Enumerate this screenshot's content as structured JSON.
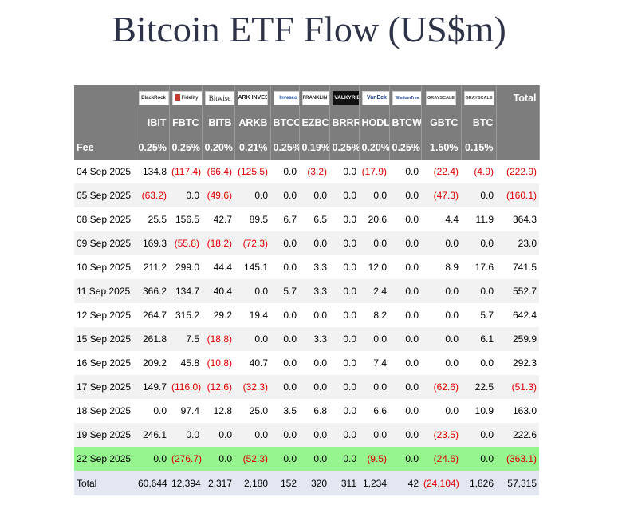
{
  "page": {
    "title": "Bitcoin ETF Flow (US$m)"
  },
  "logos": [
    {
      "text": "BlackRock",
      "icon": "blackrock-logo",
      "cls": ""
    },
    {
      "text": "Fidelity",
      "icon": "fidelity-logo",
      "cls": "fid"
    },
    {
      "text": "Bitwise",
      "icon": "bitwise-logo",
      "cls": "bit"
    },
    {
      "text": "ARK INVEST",
      "icon": "ark-invest-logo",
      "cls": "ark"
    },
    {
      "text": "Invesco",
      "icon": "invesco-logo",
      "cls": "inv"
    },
    {
      "text": "FRANKLIN TEMPLETON",
      "icon": "franklin-templeton-logo",
      "cls": ""
    },
    {
      "text": "VALKYRIE",
      "icon": "valkyrie-logo",
      "cls": "val"
    },
    {
      "text": "VanEck",
      "icon": "vaneck-logo",
      "cls": "van"
    },
    {
      "text": "WisdomTree",
      "icon": "wisdomtree-logo",
      "cls": "wt"
    },
    {
      "text": "GRAYSCALE",
      "icon": "grayscale-logo",
      "cls": "gr"
    },
    {
      "text": "GRAYSCALE",
      "icon": "grayscale-logo",
      "cls": "gr"
    }
  ],
  "table": {
    "total_header": "Total",
    "tickers": [
      "IBIT",
      "FBTC",
      "BITB",
      "ARKB",
      "BTCO",
      "EZBC",
      "BRRR",
      "HODL",
      "BTCW",
      "GBTC",
      "BTC"
    ],
    "fee_label": "Fee",
    "fees": [
      "0.25%",
      "0.25%",
      "0.20%",
      "0.21%",
      "0.25%",
      "0.19%",
      "0.25%",
      "0.20%",
      "0.25%",
      "1.50%",
      "0.15%"
    ],
    "rows": [
      {
        "date": "04 Sep 2025",
        "values": [
          "134.8",
          "(117.4)",
          "(66.4)",
          "(125.5)",
          "0.0",
          "(3.2)",
          "0.0",
          "(17.9)",
          "0.0",
          "(22.4)",
          "(4.9)",
          "(222.9)"
        ]
      },
      {
        "date": "05 Sep 2025",
        "values": [
          "(63.2)",
          "0.0",
          "(49.6)",
          "0.0",
          "0.0",
          "0.0",
          "0.0",
          "0.0",
          "0.0",
          "(47.3)",
          "0.0",
          "(160.1)"
        ]
      },
      {
        "date": "08 Sep 2025",
        "values": [
          "25.5",
          "156.5",
          "42.7",
          "89.5",
          "6.7",
          "6.5",
          "0.0",
          "20.6",
          "0.0",
          "4.4",
          "11.9",
          "364.3"
        ]
      },
      {
        "date": "09 Sep 2025",
        "values": [
          "169.3",
          "(55.8)",
          "(18.2)",
          "(72.3)",
          "0.0",
          "0.0",
          "0.0",
          "0.0",
          "0.0",
          "0.0",
          "0.0",
          "23.0"
        ]
      },
      {
        "date": "10 Sep 2025",
        "values": [
          "211.2",
          "299.0",
          "44.4",
          "145.1",
          "0.0",
          "3.3",
          "0.0",
          "12.0",
          "0.0",
          "8.9",
          "17.6",
          "741.5"
        ]
      },
      {
        "date": "11 Sep 2025",
        "values": [
          "366.2",
          "134.7",
          "40.4",
          "0.0",
          "5.7",
          "3.3",
          "0.0",
          "2.4",
          "0.0",
          "0.0",
          "0.0",
          "552.7"
        ]
      },
      {
        "date": "12 Sep 2025",
        "values": [
          "264.7",
          "315.2",
          "29.2",
          "19.4",
          "0.0",
          "0.0",
          "0.0",
          "8.2",
          "0.0",
          "0.0",
          "5.7",
          "642.4"
        ]
      },
      {
        "date": "15 Sep 2025",
        "values": [
          "261.8",
          "7.5",
          "(18.8)",
          "0.0",
          "0.0",
          "3.3",
          "0.0",
          "0.0",
          "0.0",
          "0.0",
          "6.1",
          "259.9"
        ]
      },
      {
        "date": "16 Sep 2025",
        "values": [
          "209.2",
          "45.8",
          "(10.8)",
          "40.7",
          "0.0",
          "0.0",
          "0.0",
          "7.4",
          "0.0",
          "0.0",
          "0.0",
          "292.3"
        ]
      },
      {
        "date": "17 Sep 2025",
        "values": [
          "149.7",
          "(116.0)",
          "(12.6)",
          "(32.3)",
          "0.0",
          "0.0",
          "0.0",
          "0.0",
          "0.0",
          "(62.6)",
          "22.5",
          "(51.3)"
        ]
      },
      {
        "date": "18 Sep 2025",
        "values": [
          "0.0",
          "97.4",
          "12.8",
          "25.0",
          "3.5",
          "6.8",
          "0.0",
          "6.6",
          "0.0",
          "0.0",
          "10.9",
          "163.0"
        ]
      },
      {
        "date": "19 Sep 2025",
        "values": [
          "246.1",
          "0.0",
          "0.0",
          "0.0",
          "0.0",
          "0.0",
          "0.0",
          "0.0",
          "0.0",
          "(23.5)",
          "0.0",
          "222.6"
        ]
      },
      {
        "date": "22 Sep 2025",
        "values": [
          "0.0",
          "(276.7)",
          "0.0",
          "(52.3)",
          "0.0",
          "0.0",
          "0.0",
          "(9.5)",
          "0.0",
          "(24.6)",
          "0.0",
          "(363.1)"
        ]
      }
    ],
    "highlight_row": 12,
    "total_row": {
      "label": "Total",
      "values": [
        "60,644",
        "12,394",
        "2,317",
        "2,180",
        "152",
        "320",
        "311",
        "1,234",
        "42",
        "(24,104)",
        "1,826",
        "57,315"
      ]
    }
  },
  "colors": {
    "header_bg": "#7d7d7d",
    "negative": "#e00000",
    "highlight": "#97f58f",
    "total_bg": "#e3e7f2"
  }
}
